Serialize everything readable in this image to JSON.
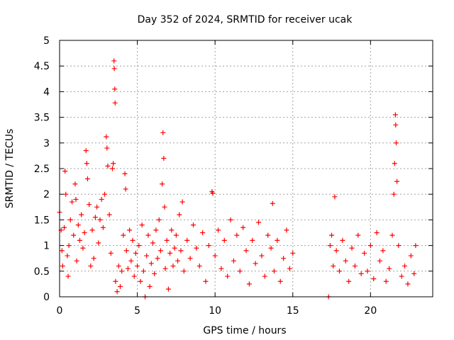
{
  "chart_data": {
    "type": "scatter",
    "title": "Day 352 of 2024, SRMTID for receiver ucak",
    "xlabel": "GPS time / hours",
    "ylabel": "SRMTID / TECUs",
    "xlim": [
      0,
      24
    ],
    "ylim": [
      0,
      5
    ],
    "xticks": [
      0,
      5,
      10,
      15,
      20
    ],
    "yticks": [
      0,
      0.5,
      1,
      1.5,
      2,
      2.5,
      3,
      3.5,
      4,
      4.5,
      5
    ],
    "xtick_labels": [
      "0",
      "5",
      "10",
      "15",
      "20"
    ],
    "ytick_labels": [
      "0",
      "0.5",
      "1",
      "1.5",
      "2",
      "2.5",
      "3",
      "3.5",
      "4",
      "4.5",
      "5"
    ],
    "grid": true,
    "marker": "+",
    "color": "#ff0000",
    "series": [
      {
        "name": "SRMTID",
        "points": [
          [
            0.0,
            1.65
          ],
          [
            0.1,
            1.3
          ],
          [
            0.15,
            0.9
          ],
          [
            0.2,
            0.6
          ],
          [
            0.3,
            1.35
          ],
          [
            0.35,
            2.45
          ],
          [
            0.4,
            2.0
          ],
          [
            0.5,
            0.8
          ],
          [
            0.55,
            0.4
          ],
          [
            0.6,
            1.0
          ],
          [
            0.7,
            1.5
          ],
          [
            0.8,
            1.85
          ],
          [
            0.9,
            1.2
          ],
          [
            1.0,
            2.2
          ],
          [
            1.05,
            1.9
          ],
          [
            1.1,
            0.7
          ],
          [
            1.2,
            1.4
          ],
          [
            1.3,
            1.1
          ],
          [
            1.4,
            1.6
          ],
          [
            1.5,
            0.95
          ],
          [
            1.6,
            1.25
          ],
          [
            1.7,
            2.85
          ],
          [
            1.75,
            2.6
          ],
          [
            1.8,
            2.3
          ],
          [
            1.9,
            1.8
          ],
          [
            2.0,
            0.6
          ],
          [
            2.1,
            1.3
          ],
          [
            2.2,
            0.75
          ],
          [
            2.3,
            1.55
          ],
          [
            2.4,
            1.75
          ],
          [
            2.5,
            1.05
          ],
          [
            2.6,
            1.5
          ],
          [
            2.7,
            1.9
          ],
          [
            2.8,
            1.35
          ],
          [
            2.9,
            2.0
          ],
          [
            3.0,
            3.12
          ],
          [
            3.05,
            2.9
          ],
          [
            3.1,
            2.55
          ],
          [
            3.2,
            1.6
          ],
          [
            3.3,
            0.85
          ],
          [
            3.4,
            2.5
          ],
          [
            3.45,
            2.6
          ],
          [
            3.5,
            4.6
          ],
          [
            3.52,
            4.45
          ],
          [
            3.55,
            4.05
          ],
          [
            3.57,
            3.78
          ],
          [
            3.6,
            0.3
          ],
          [
            3.7,
            0.1
          ],
          [
            3.8,
            0.6
          ],
          [
            3.9,
            0.2
          ],
          [
            4.0,
            0.5
          ],
          [
            4.1,
            1.2
          ],
          [
            4.2,
            2.4
          ],
          [
            4.25,
            2.1
          ],
          [
            4.3,
            0.9
          ],
          [
            4.4,
            0.55
          ],
          [
            4.5,
            1.3
          ],
          [
            4.6,
            0.7
          ],
          [
            4.7,
            1.1
          ],
          [
            4.8,
            0.4
          ],
          [
            4.9,
            0.85
          ],
          [
            5.0,
            0.6
          ],
          [
            5.1,
            1.0
          ],
          [
            5.2,
            0.3
          ],
          [
            5.3,
            1.4
          ],
          [
            5.4,
            0.5
          ],
          [
            5.5,
            0.0
          ],
          [
            5.6,
            0.8
          ],
          [
            5.7,
            1.2
          ],
          [
            5.8,
            0.2
          ],
          [
            5.9,
            0.65
          ],
          [
            6.0,
            1.05
          ],
          [
            6.1,
            0.45
          ],
          [
            6.2,
            1.3
          ],
          [
            6.3,
            0.75
          ],
          [
            6.4,
            1.5
          ],
          [
            6.5,
            0.9
          ],
          [
            6.6,
            2.2
          ],
          [
            6.65,
            3.2
          ],
          [
            6.7,
            2.7
          ],
          [
            6.75,
            1.75
          ],
          [
            6.8,
            0.55
          ],
          [
            6.9,
            1.1
          ],
          [
            7.0,
            0.15
          ],
          [
            7.1,
            0.85
          ],
          [
            7.2,
            1.3
          ],
          [
            7.3,
            0.6
          ],
          [
            7.4,
            0.95
          ],
          [
            7.5,
            1.2
          ],
          [
            7.6,
            0.7
          ],
          [
            7.7,
            1.6
          ],
          [
            7.8,
            0.9
          ],
          [
            7.9,
            1.85
          ],
          [
            8.0,
            0.5
          ],
          [
            8.2,
            1.1
          ],
          [
            8.4,
            0.75
          ],
          [
            8.6,
            1.4
          ],
          [
            8.8,
            0.95
          ],
          [
            9.0,
            0.6
          ],
          [
            9.2,
            1.25
          ],
          [
            9.4,
            0.3
          ],
          [
            9.6,
            1.0
          ],
          [
            9.8,
            2.05
          ],
          [
            9.85,
            2.02
          ],
          [
            10.0,
            0.8
          ],
          [
            10.2,
            1.3
          ],
          [
            10.4,
            0.55
          ],
          [
            10.6,
            1.1
          ],
          [
            10.8,
            0.4
          ],
          [
            11.0,
            1.5
          ],
          [
            11.2,
            0.7
          ],
          [
            11.4,
            1.2
          ],
          [
            11.6,
            0.5
          ],
          [
            11.8,
            1.35
          ],
          [
            12.0,
            0.9
          ],
          [
            12.2,
            0.25
          ],
          [
            12.4,
            1.1
          ],
          [
            12.6,
            0.65
          ],
          [
            12.8,
            1.45
          ],
          [
            13.0,
            0.8
          ],
          [
            13.2,
            0.4
          ],
          [
            13.4,
            1.2
          ],
          [
            13.6,
            0.95
          ],
          [
            13.7,
            1.82
          ],
          [
            13.8,
            0.5
          ],
          [
            14.0,
            1.1
          ],
          [
            14.2,
            0.3
          ],
          [
            14.4,
            0.75
          ],
          [
            14.6,
            1.3
          ],
          [
            14.8,
            0.55
          ],
          [
            15.0,
            0.85
          ],
          [
            17.3,
            0.0
          ],
          [
            17.4,
            1.0
          ],
          [
            17.5,
            1.2
          ],
          [
            17.6,
            0.6
          ],
          [
            17.7,
            1.95
          ],
          [
            17.8,
            0.9
          ],
          [
            18.0,
            0.5
          ],
          [
            18.2,
            1.1
          ],
          [
            18.4,
            0.7
          ],
          [
            18.6,
            0.3
          ],
          [
            18.8,
            0.95
          ],
          [
            19.0,
            0.6
          ],
          [
            19.2,
            1.2
          ],
          [
            19.4,
            0.45
          ],
          [
            19.6,
            0.85
          ],
          [
            19.8,
            0.5
          ],
          [
            20.0,
            1.0
          ],
          [
            20.2,
            0.35
          ],
          [
            20.4,
            1.25
          ],
          [
            20.6,
            0.7
          ],
          [
            20.8,
            0.9
          ],
          [
            21.0,
            0.3
          ],
          [
            21.2,
            0.55
          ],
          [
            21.4,
            1.2
          ],
          [
            21.5,
            2.0
          ],
          [
            21.55,
            2.6
          ],
          [
            21.6,
            3.55
          ],
          [
            21.62,
            3.35
          ],
          [
            21.65,
            3.0
          ],
          [
            21.7,
            2.25
          ],
          [
            21.8,
            1.0
          ],
          [
            22.0,
            0.4
          ],
          [
            22.2,
            0.6
          ],
          [
            22.4,
            0.25
          ],
          [
            22.6,
            0.8
          ],
          [
            22.8,
            0.45
          ],
          [
            22.9,
            1.0
          ]
        ]
      }
    ]
  }
}
